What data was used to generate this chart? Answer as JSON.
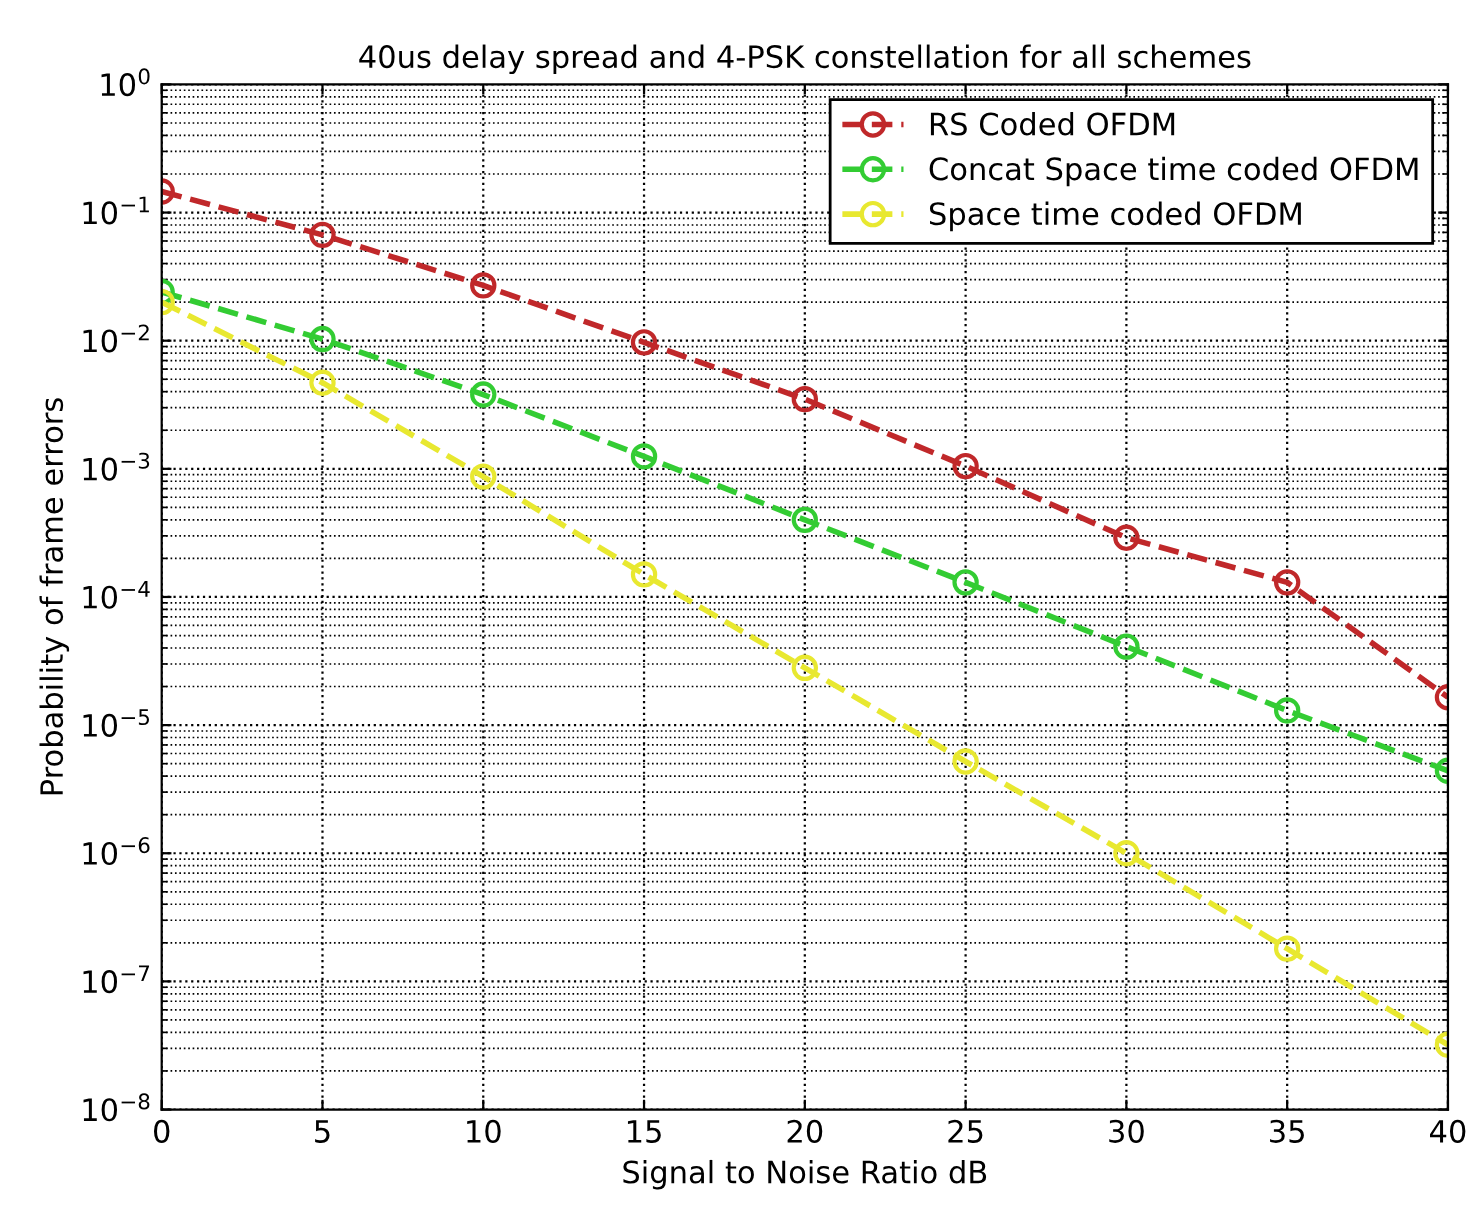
{
  "chart_data": {
    "type": "line",
    "title": "40us delay spread and 4-PSK constellation for all schemes",
    "xlabel": "Signal to Noise Ratio dB",
    "ylabel": "Probability of frame errors",
    "x": [
      0,
      5,
      10,
      15,
      20,
      25,
      30,
      35,
      40
    ],
    "series": [
      {
        "name": "RS Coded OFDM",
        "color": "#c0282a",
        "values": [
          0.146,
          0.067,
          0.027,
          0.0097,
          0.0035,
          0.00105,
          0.00029,
          0.00013,
          1.65e-05
        ]
      },
      {
        "name": "Concat Space time coded OFDM",
        "color": "#33cc33",
        "values": [
          0.024,
          0.0103,
          0.0038,
          0.00125,
          0.0004,
          0.00013,
          4.1e-05,
          1.3e-05,
          4.4e-06
        ]
      },
      {
        "name": "Space time coded OFDM",
        "color": "#e8e830",
        "values": [
          0.02,
          0.0047,
          0.00087,
          0.00015,
          2.8e-05,
          5.2e-06,
          1e-06,
          1.8e-07,
          3.2e-08
        ]
      }
    ],
    "log": "y",
    "xlim": [
      0,
      40
    ],
    "xticks": [
      0,
      5,
      10,
      15,
      20,
      25,
      30,
      35,
      40
    ],
    "ylim": [
      1e-08,
      1
    ],
    "yticks": [
      {
        "value": 1e-08,
        "label": "10$^{−8}$"
      },
      {
        "value": 1e-07,
        "label": "10$^{−7}$"
      },
      {
        "value": 1e-06,
        "label": "10$^{−6}$"
      },
      {
        "value": 1e-05,
        "label": "10$^{−5}$"
      },
      {
        "value": 0.0001,
        "label": "10$^{−4}$"
      },
      {
        "value": 0.001,
        "label": "10$^{−3}$"
      },
      {
        "value": 0.01,
        "label": "10$^{−2}$"
      },
      {
        "value": 0.1,
        "label": "10$^{−1}$"
      },
      {
        "value": 1,
        "label": "10$^{0}$"
      }
    ],
    "grid": true,
    "legend": "top right",
    "marker": "circle",
    "line_style": "dashed"
  }
}
